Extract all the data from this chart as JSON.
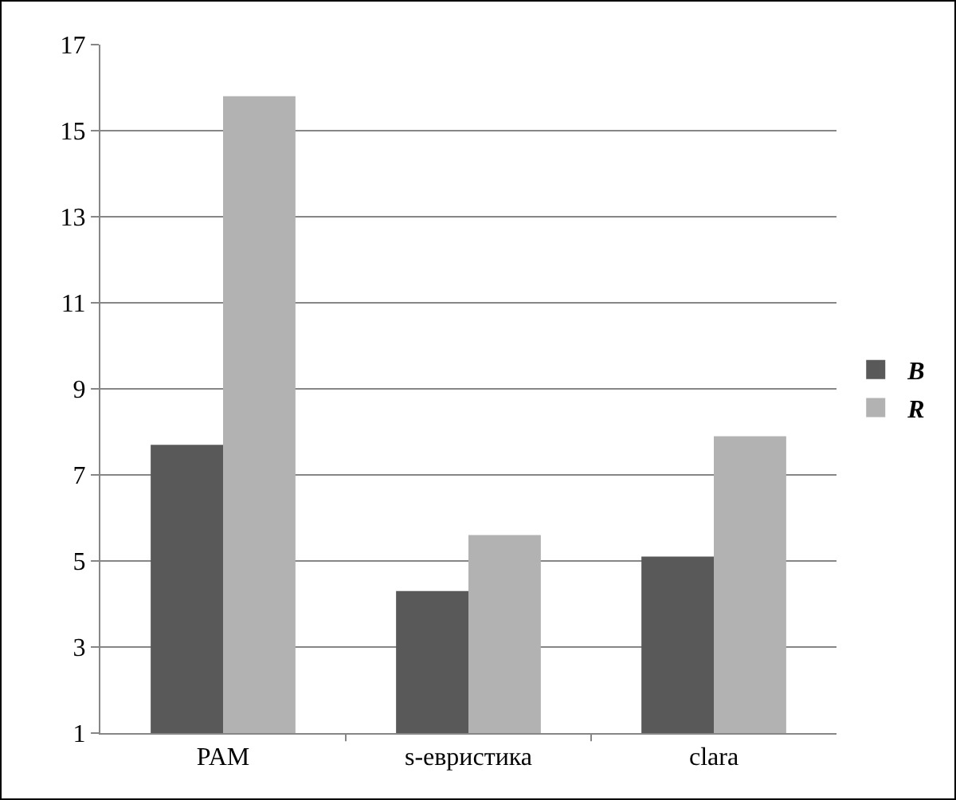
{
  "chart_data": {
    "type": "bar",
    "categories": [
      "PAM",
      "s-евристика",
      "clara"
    ],
    "series": [
      {
        "name": "B",
        "color": "#595959",
        "values": [
          7.7,
          4.3,
          5.1
        ]
      },
      {
        "name": "R",
        "color": "#b2b2b2",
        "values": [
          15.8,
          5.6,
          7.9
        ]
      }
    ],
    "ylim": [
      1,
      17
    ],
    "yticks": [
      1,
      3,
      5,
      7,
      9,
      11,
      13,
      15,
      17
    ],
    "grid": "y",
    "legend": "right"
  }
}
